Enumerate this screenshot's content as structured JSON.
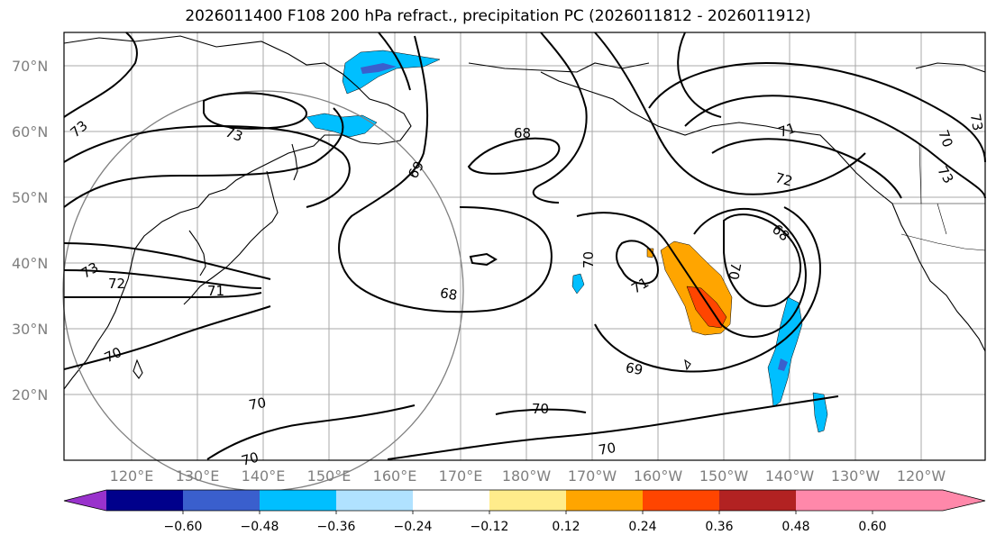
{
  "title": "2026011400 F108 200 hPa refract., precipitation PC (2026011812 - 2026011912)",
  "lat_labels": [
    "70°N",
    "60°N",
    "50°N",
    "40°N",
    "30°N",
    "20°N"
  ],
  "lon_labels": [
    "120°E",
    "130°E",
    "140°E",
    "150°E",
    "160°E",
    "170°E",
    "180°W",
    "170°W",
    "160°W",
    "150°W",
    "140°W",
    "130°W",
    "120°W"
  ],
  "contour_labels": [
    "73",
    "73",
    "73",
    "72",
    "71",
    "70",
    "70",
    "70",
    "70",
    "69",
    "68",
    "68",
    "70",
    "71",
    "71",
    "72",
    "73",
    "70",
    "73",
    "68",
    "69",
    "70",
    "70"
  ],
  "colorbar": {
    "ticks": [
      "−0.60",
      "−0.48",
      "−0.36",
      "−0.24",
      "−0.12",
      "0.12",
      "0.24",
      "0.36",
      "0.48",
      "0.60"
    ],
    "colors": [
      "#9932cc",
      "#00008b",
      "#3a5fcd",
      "#00bfff",
      "#b0e2ff",
      "#ffffff",
      "#ffec8b",
      "#ffa500",
      "#ff4500",
      "#b22222",
      "#ff88aa"
    ]
  }
}
